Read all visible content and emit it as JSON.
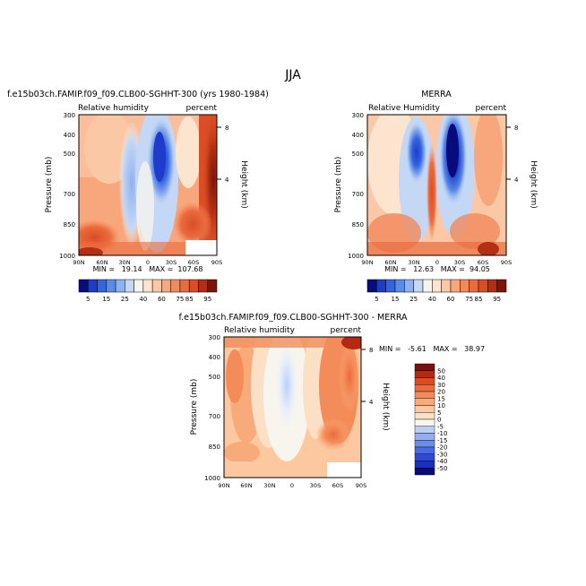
{
  "figure_title": "JJA",
  "colors": {
    "rh_scale": [
      "#0a0a7f",
      "#1d3cc9",
      "#3465e0",
      "#5b8be8",
      "#8fb1ef",
      "#c4d8f5",
      "#f5f5ee",
      "#fde4cf",
      "#fbc8a6",
      "#f8a77c",
      "#f38a5c",
      "#ea6b3e",
      "#db4d25",
      "#b22f13",
      "#7a140a"
    ],
    "diff_scale": [
      "#0a0a7f",
      "#1d2fbd",
      "#2f49d6",
      "#4a6be0",
      "#6d8de8",
      "#94aeef",
      "#bcd0f6",
      "#f7f5ee",
      "#fce0c5",
      "#fbc8a0",
      "#f8aa7a",
      "#f48c5a",
      "#ec6c3c",
      "#dd4b22",
      "#b32a10",
      "#7a1208"
    ]
  },
  "chart_data": [
    {
      "type": "heatmap",
      "title": "f.e15b03ch.FAMIP.f09_f09.CLB00-SGHHT-300 (yrs 1980-1984)",
      "left_label": "Relative humidity",
      "right_label": "percent",
      "xlabel": "",
      "ylabel": "Pressure (mb)",
      "y2label": "Height (km)",
      "x_ticks": [
        "90N",
        "60N",
        "30N",
        "0",
        "30S",
        "60S",
        "90S"
      ],
      "y_ticks": [
        "300",
        "400",
        "500",
        "700",
        "850",
        "1000"
      ],
      "y2_ticks": [
        "8",
        "4"
      ],
      "stats": "MIN =   19.14   MAX =  107.68",
      "min": 19.14,
      "max": 107.68
    },
    {
      "type": "heatmap",
      "title": "MERRA",
      "left_label": "Relative Humidity",
      "right_label": "percent",
      "xlabel": "",
      "ylabel": "Pressure (mb)",
      "y2label": "Height (km)",
      "x_ticks": [
        "90N",
        "60N",
        "30N",
        "0",
        "30S",
        "60S",
        "90S"
      ],
      "y_ticks": [
        "300",
        "400",
        "500",
        "700",
        "850",
        "1000"
      ],
      "y2_ticks": [
        "8",
        "4"
      ],
      "stats": "MIN =   12.63   MAX =  94.05",
      "min": 12.63,
      "max": 94.05
    },
    {
      "type": "heatmap",
      "title": "f.e15b03ch.FAMIP.f09_f09.CLB00-SGHHT-300 - MERRA",
      "left_label": "Relative humidity",
      "right_label": "percent",
      "xlabel": "",
      "ylabel": "Pressure (mb)",
      "y2label": "Height (km)",
      "x_ticks": [
        "90N",
        "60N",
        "30N",
        "0",
        "30S",
        "60S",
        "90S"
      ],
      "y_ticks": [
        "300",
        "400",
        "500",
        "700",
        "850",
        "1000"
      ],
      "y2_ticks": [
        "8",
        "4"
      ],
      "stats": "MIN =   -5.61   MAX =   38.97",
      "min": -5.61,
      "max": 38.97
    }
  ],
  "rh_colorbar_labels": [
    "5",
    "15",
    "25",
    "40",
    "60",
    "75",
    "85",
    "95"
  ],
  "diff_colorbar_labels": [
    "50",
    "40",
    "30",
    "20",
    "15",
    "10",
    "5",
    "0",
    "-5",
    "-10",
    "-15",
    "-20",
    "-30",
    "-40",
    "-50"
  ]
}
